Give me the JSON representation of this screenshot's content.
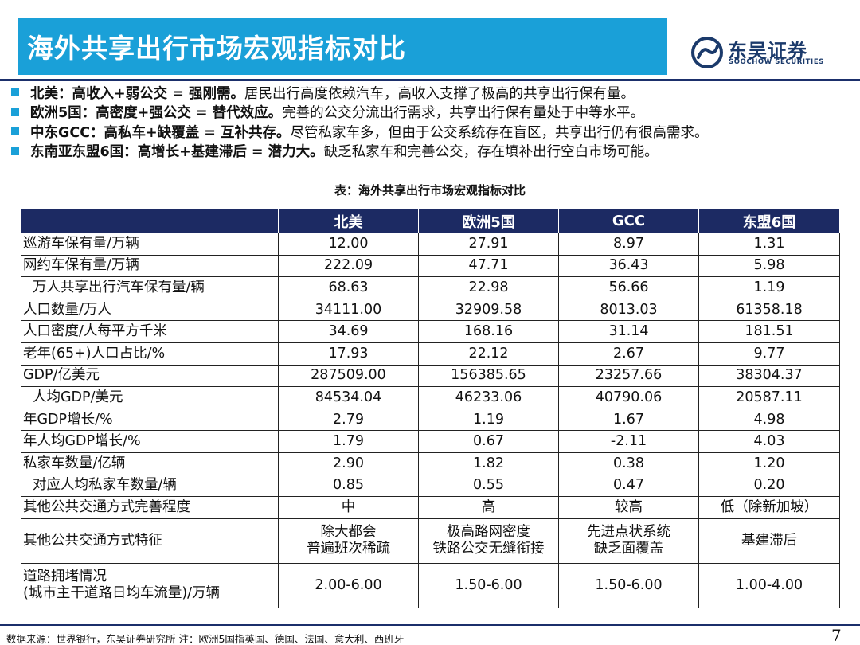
{
  "title": "海外共享出行市场宏观指标对比",
  "logo": {
    "cn": "东吴证券",
    "en": "SOOCHOW SECURITIES",
    "mark_color": "#1b3a6b"
  },
  "bullets": [
    {
      "head": "北美：高收入+弱公交 = 强刚需。",
      "body": "居民出行高度依赖汽车，高收入支撑了极高的共享出行保有量。"
    },
    {
      "head": "欧洲5国：高密度+强公交 = 替代效应。",
      "body": "完善的公交分流出行需求，共享出行保有量处于中等水平。"
    },
    {
      "head": "中东GCC：高私车+缺覆盖 = 互补共存。",
      "body": "尽管私家车多，但由于公交系统存在盲区，共享出行仍有很高需求。"
    },
    {
      "head": "东南亚东盟6国：高增长+基建滞后 = 潜力大。",
      "body": "缺乏私家车和完善公交，存在填补出行空白市场可能。"
    }
  ],
  "table": {
    "caption": "表：海外共享出行市场宏观指标对比",
    "columns": [
      "北美",
      "欧洲5国",
      "GCC",
      "东盟6国"
    ],
    "rows": [
      {
        "label": "巡游车保有量/万辆",
        "values": [
          "12.00",
          "27.91",
          "8.97",
          "1.31"
        ]
      },
      {
        "label": "网约车保有量/万辆",
        "values": [
          "222.09",
          "47.71",
          "36.43",
          "5.98"
        ]
      },
      {
        "label": "万人共享出行汽车保有量/辆",
        "values": [
          "68.63",
          "22.98",
          "56.66",
          "1.19"
        ]
      },
      {
        "label": "人口数量/万人",
        "values": [
          "34111.00",
          "32909.58",
          "8013.03",
          "61358.18"
        ]
      },
      {
        "label": "人口密度/人每平方千米",
        "values": [
          "34.69",
          "168.16",
          "31.14",
          "181.51"
        ]
      },
      {
        "label": "老年(65+)人口占比/%",
        "values": [
          "17.93",
          "22.12",
          "2.67",
          "9.77"
        ]
      },
      {
        "label": "GDP/亿美元",
        "values": [
          "287509.00",
          "156385.65",
          "23257.66",
          "38304.37"
        ]
      },
      {
        "label": "人均GDP/美元",
        "values": [
          "84534.04",
          "46233.06",
          "40790.06",
          "20587.11"
        ]
      },
      {
        "label": "年GDP增长/%",
        "values": [
          "2.79",
          "1.19",
          "1.67",
          "4.98"
        ]
      },
      {
        "label": "年人均GDP增长/%",
        "values": [
          "1.79",
          "0.67",
          "-2.11",
          "4.03"
        ]
      },
      {
        "label": "私家车数量/亿辆",
        "values": [
          "2.90",
          "1.82",
          "0.38",
          "1.20"
        ]
      },
      {
        "label": "对应人均私家车数量/辆",
        "values": [
          "0.85",
          "0.55",
          "0.47",
          "0.20"
        ]
      },
      {
        "label": "其他公共交通方式完善程度",
        "values": [
          "中",
          "高",
          "较高",
          "低（除新加坡）"
        ]
      },
      {
        "label": "其他公共交通方式特征",
        "values": [
          [
            "除大都会",
            "普遍班次稀疏"
          ],
          [
            "极高路网密度",
            "铁路公交无缝衔接"
          ],
          [
            "先进点状系统",
            "缺乏面覆盖"
          ],
          [
            "基建滞后"
          ]
        ]
      },
      {
        "label": [
          "道路拥堵情况",
          "(城市主干道路日均车流量)/万辆"
        ],
        "values": [
          "2.00-6.00",
          "1.50-6.00",
          "1.50-6.00",
          "1.00-4.00"
        ]
      }
    ]
  },
  "footer": "数据来源：世界银行，东吴证券研究所   注：欧洲5国指英国、德国、法国、意大利、西班牙",
  "page_number": "7",
  "colors": {
    "title_bar": "#1aa0d8",
    "header": "#1c2a63",
    "bullet": "#1aa0d8",
    "rule": "#1b2f6b"
  }
}
